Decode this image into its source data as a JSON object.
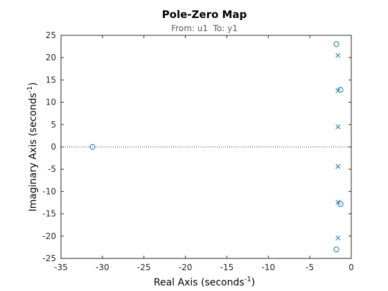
{
  "chart_data": {
    "type": "scatter",
    "title": "Pole-Zero Map",
    "subtitle": "From: u1  To: y1",
    "xlabel": {
      "text": "Real Axis (seconds",
      "sup": "-1",
      "close": ")"
    },
    "ylabel": {
      "text": "Imaginary Axis (seconds",
      "sup": "-1",
      "close": ")"
    },
    "xlim": [
      -35,
      0
    ],
    "ylim": [
      -25,
      25
    ],
    "xticks": [
      -35,
      -30,
      -25,
      -20,
      -15,
      -10,
      -5,
      0
    ],
    "yticks": [
      -25,
      -20,
      -15,
      -10,
      -5,
      0,
      5,
      10,
      15,
      20,
      25
    ],
    "marker_color": "#0072BD",
    "reference_line": {
      "y": 0,
      "style": "dotted"
    },
    "series": [
      {
        "marker": "x",
        "points": [
          [
            -1.6,
            20.5
          ],
          [
            -1.6,
            12.6
          ],
          [
            -1.6,
            4.5
          ],
          [
            -1.6,
            -4.4
          ],
          [
            -1.6,
            -12.4
          ],
          [
            -1.6,
            -20.4
          ]
        ]
      },
      {
        "marker": "o",
        "points": [
          [
            -31.2,
            0
          ],
          [
            -1.8,
            23.0
          ],
          [
            -1.3,
            12.8
          ],
          [
            -1.3,
            -12.8
          ],
          [
            -1.8,
            -23.0
          ]
        ]
      }
    ]
  }
}
